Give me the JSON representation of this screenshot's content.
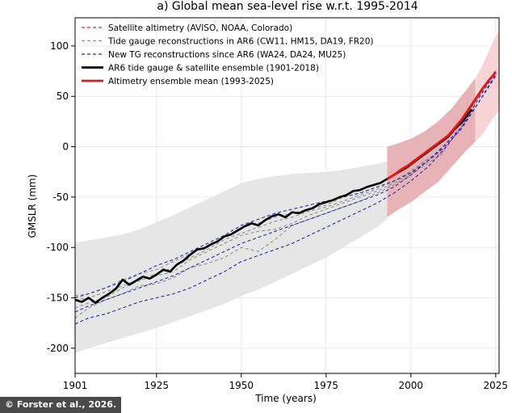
{
  "credit": "© Forster et al., 2026.",
  "chart_data": {
    "type": "line",
    "title": "a) Global mean sea-level rise w.r.t. 1995-2014",
    "xlabel": "Time (years)",
    "ylabel": "GMSLR (mm)",
    "xlim": [
      1901,
      2026
    ],
    "ylim": [
      -225,
      128
    ],
    "x_ticks": [
      1901,
      1925,
      1950,
      1975,
      2000,
      2025
    ],
    "y_ticks": [
      -200,
      -150,
      -100,
      -50,
      0,
      50,
      100
    ],
    "grid": true,
    "legend": "top-left",
    "series": [
      {
        "name": "Satellite altimetry (AVISO, NOAA, Colorado)",
        "style": "dashed",
        "color": "#d03030",
        "x": [
          1993,
          1996,
          1999,
          2002,
          2005,
          2008,
          2011,
          2014,
          2017,
          2020,
          2023,
          2025
        ],
        "y": [
          -32,
          -26,
          -21,
          -13,
          -6,
          2,
          9,
          20,
          35,
          50,
          66,
          76
        ]
      },
      {
        "name": "Tide gauge reconstructions in AR6 (CW11, HM15, DA19, FR20)",
        "style": "dashed",
        "color": "#909090",
        "lines": [
          {
            "x": [
              1901,
              1905,
              1910,
              1915,
              1920,
              1925,
              1930,
              1935,
              1940,
              1945,
              1950,
              1955,
              1960,
              1965,
              1970,
              1975,
              1980,
              1985,
              1990,
              1995,
              2000,
              2005,
              2010
            ],
            "y": [
              -148,
              -146,
              -140,
              -132,
              -126,
              -122,
              -114,
              -106,
              -98,
              -90,
              -80,
              -76,
              -70,
              -66,
              -62,
              -58,
              -50,
              -46,
              -40,
              -34,
              -25,
              -12,
              -2
            ]
          },
          {
            "x": [
              1901,
              1905,
              1910,
              1915,
              1920,
              1925,
              1930,
              1935,
              1940,
              1945,
              1950,
              1955,
              1960,
              1965,
              1970,
              1975,
              1980,
              1985,
              1990,
              1995,
              2000,
              2005,
              2010
            ],
            "y": [
              -160,
              -155,
              -150,
              -140,
              -133,
              -128,
              -124,
              -112,
              -104,
              -96,
              -88,
              -84,
              -82,
              -76,
              -68,
              -62,
              -56,
              -50,
              -44,
              -36,
              -26,
              -14,
              -4
            ]
          },
          {
            "x": [
              1901,
              1905,
              1910,
              1915,
              1920,
              1925,
              1930,
              1935,
              1940,
              1945,
              1950,
              1955,
              1960,
              1965,
              1970,
              1975,
              1980,
              1985,
              1990,
              1995,
              2000,
              2005,
              2010
            ],
            "y": [
              -170,
              -160,
              -152,
              -146,
              -138,
              -136,
              -130,
              -120,
              -116,
              -110,
              -100,
              -104,
              -92,
              -78,
              -72,
              -66,
              -60,
              -54,
              -46,
              -38,
              -28,
              -16,
              -6
            ]
          },
          {
            "x": [
              1901,
              1905,
              1910,
              1915,
              1920,
              1925,
              1930,
              1935,
              1940,
              1945,
              1950,
              1955,
              1960,
              1965,
              1970,
              1975,
              1980,
              1985,
              1990,
              1995,
              2000,
              2005,
              2010
            ],
            "y": [
              -152,
              -150,
              -144,
              -138,
              -132,
              -126,
              -120,
              -110,
              -102,
              -92,
              -86,
              -80,
              -74,
              -70,
              -64,
              -60,
              -54,
              -48,
              -42,
              -34,
              -24,
              -12,
              -2
            ]
          }
        ]
      },
      {
        "name": "New TG reconstructions since AR6 (WA24, DA24, MU25)",
        "style": "dashed",
        "color": "#2a2aa8",
        "lines": [
          {
            "x": [
              1901,
              1905,
              1910,
              1915,
              1920,
              1925,
              1930,
              1935,
              1940,
              1945,
              1950,
              1955,
              1960,
              1965,
              1970,
              1975,
              1980,
              1985,
              1990,
              1995,
              2000,
              2005,
              2010,
              2015,
              2020,
              2025
            ],
            "y": [
              -176,
              -170,
              -166,
              -160,
              -154,
              -150,
              -146,
              -140,
              -132,
              -124,
              -114,
              -108,
              -102,
              -96,
              -88,
              -80,
              -72,
              -64,
              -56,
              -46,
              -34,
              -20,
              -2,
              20,
              48,
              74
            ]
          },
          {
            "x": [
              1901,
              1905,
              1910,
              1915,
              1920,
              1925,
              1930,
              1935,
              1940,
              1945,
              1950,
              1955,
              1960,
              1965,
              1970,
              1975,
              1980,
              1985,
              1990,
              1995,
              2000,
              2005,
              2010,
              2015,
              2020,
              2025
            ],
            "y": [
              -164,
              -158,
              -152,
              -146,
              -140,
              -134,
              -128,
              -120,
              -112,
              -104,
              -96,
              -90,
              -84,
              -78,
              -72,
              -66,
              -60,
              -54,
              -48,
              -40,
              -28,
              -14,
              0,
              18,
              44,
              72
            ]
          },
          {
            "x": [
              1901,
              1905,
              1910,
              1915,
              1920,
              1925,
              1930,
              1935,
              1940,
              1945,
              1950,
              1955,
              1960,
              1965,
              1970,
              1975,
              1980,
              1985,
              1990,
              1995,
              2000,
              2005,
              2010,
              2015,
              2020,
              2025
            ],
            "y": [
              -150,
              -146,
              -140,
              -134,
              -126,
              -118,
              -112,
              -104,
              -96,
              -88,
              -78,
              -72,
              -66,
              -62,
              -58,
              -54,
              -50,
              -46,
              -40,
              -34,
              -26,
              -14,
              2,
              20,
              44,
              70
            ]
          }
        ]
      },
      {
        "name": "AR6 tide gauge & satellite ensemble (1901-2018)",
        "style": "solid",
        "color": "#000000",
        "x": [
          1901,
          1903,
          1905,
          1907,
          1909,
          1911,
          1913,
          1915,
          1917,
          1919,
          1921,
          1923,
          1925,
          1927,
          1929,
          1931,
          1933,
          1935,
          1937,
          1939,
          1941,
          1943,
          1945,
          1947,
          1949,
          1951,
          1953,
          1955,
          1957,
          1959,
          1961,
          1963,
          1965,
          1967,
          1969,
          1971,
          1973,
          1975,
          1977,
          1979,
          1981,
          1983,
          1985,
          1987,
          1989,
          1991,
          1993,
          1995,
          1997,
          1999,
          2001,
          2003,
          2005,
          2007,
          2009,
          2011,
          2013,
          2015,
          2017,
          2018
        ],
        "y": [
          -152,
          -154,
          -150,
          -155,
          -150,
          -146,
          -141,
          -132,
          -137,
          -133,
          -129,
          -131,
          -127,
          -122,
          -124,
          -117,
          -113,
          -107,
          -102,
          -101,
          -97,
          -94,
          -89,
          -87,
          -83,
          -79,
          -76,
          -78,
          -73,
          -69,
          -67,
          -70,
          -65,
          -66,
          -63,
          -61,
          -57,
          -55,
          -53,
          -50,
          -48,
          -44,
          -43,
          -40,
          -38,
          -36,
          -32,
          -28,
          -24,
          -20,
          -15,
          -10,
          -5,
          0,
          5,
          10,
          18,
          24,
          33,
          37
        ]
      },
      {
        "name": "Altimetry ensemble mean (1993-2025)",
        "style": "solid",
        "color": "#dd1a1a",
        "x": [
          1993,
          1995,
          1997,
          1999,
          2001,
          2003,
          2005,
          2007,
          2009,
          2011,
          2013,
          2015,
          2017,
          2019,
          2021,
          2023,
          2025
        ],
        "y": [
          -32,
          -28,
          -23,
          -19,
          -14,
          -9,
          -4,
          1,
          6,
          11,
          19,
          27,
          37,
          47,
          57,
          66,
          74
        ]
      }
    ],
    "bands": [
      {
        "color": "#e6e6e6",
        "x": [
          1901,
          1905,
          1910,
          1915,
          1920,
          1925,
          1930,
          1935,
          1940,
          1945,
          1950,
          1955,
          1960,
          1965,
          1970,
          1975,
          1980,
          1985,
          1990,
          1993
        ],
        "upper": [
          -95,
          -93,
          -90,
          -87,
          -82,
          -75,
          -68,
          -60,
          -52,
          -44,
          -36,
          -32,
          -29,
          -27,
          -26,
          -25,
          -23,
          -20,
          -17,
          -15
        ],
        "lower": [
          -205,
          -200,
          -195,
          -190,
          -185,
          -180,
          -174,
          -168,
          -162,
          -156,
          -148,
          -142,
          -134,
          -126,
          -118,
          -110,
          -100,
          -90,
          -80,
          -72
        ]
      },
      {
        "color": "#e7b3b7",
        "x": [
          1993,
          1996,
          2000,
          2004,
          2008,
          2012,
          2016,
          2019
        ],
        "upper": [
          0,
          3,
          8,
          15,
          25,
          38,
          55,
          68
        ],
        "lower": [
          -70,
          -63,
          -55,
          -45,
          -35,
          -20,
          -5,
          5
        ]
      },
      {
        "color": "#f8d4d6",
        "x": [
          2019,
          2021,
          2023,
          2025,
          2026
        ],
        "upper": [
          68,
          80,
          95,
          110,
          115
        ],
        "lower": [
          5,
          12,
          22,
          32,
          36
        ]
      }
    ]
  }
}
